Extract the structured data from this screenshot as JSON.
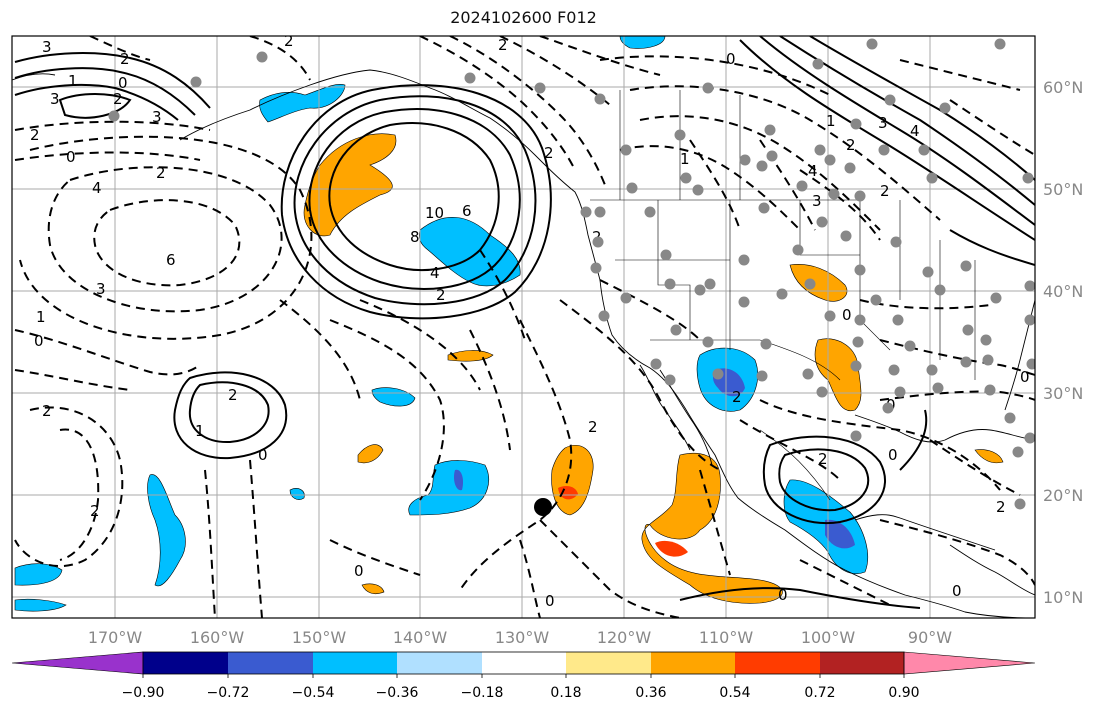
{
  "title": "2024102600 F012",
  "map": {
    "projection": "cylindrical",
    "lon_range": [
      -178,
      -77
    ],
    "lat_range": [
      8,
      65
    ],
    "lon_labels": [
      "170°W",
      "160°W",
      "150°W",
      "140°W",
      "130°W",
      "120°W",
      "110°W",
      "100°W",
      "90°W"
    ],
    "lat_labels": [
      "60°N",
      "50°N",
      "40°N",
      "30°N",
      "20°N",
      "10°N"
    ],
    "marker": {
      "lon": -128,
      "lat": 19,
      "color": "#000000"
    },
    "contour_labels": [
      "3",
      "2",
      "1",
      "0",
      "3",
      "2",
      "3",
      "2",
      "0",
      "4",
      "2",
      "6",
      "3",
      "1",
      "0",
      "2",
      "2",
      "10",
      "8",
      "6",
      "4",
      "2",
      "0",
      "2",
      "1",
      "0",
      "2",
      "0",
      "0",
      "2",
      "0",
      "0",
      "1",
      "2",
      "3",
      "4",
      "2",
      "3",
      "1",
      "2",
      "0",
      "4",
      "2",
      "0",
      "2",
      "2",
      "2",
      "0",
      "2",
      "0"
    ]
  },
  "colorbar": {
    "colors": [
      "#9932cc",
      "#00008b",
      "#3a5bd0",
      "#00bfff",
      "#b0e0ff",
      "#ffffff",
      "#ffe98a",
      "#ffa500",
      "#ff3c00",
      "#b22222",
      "#ff88aa"
    ],
    "tick_labels": [
      "−0.90",
      "−0.72",
      "−0.54",
      "−0.36",
      "−0.18",
      "0.18",
      "0.36",
      "0.54",
      "0.72",
      "0.90"
    ],
    "ticks": [
      -0.9,
      -0.72,
      -0.54,
      -0.36,
      -0.18,
      0.18,
      0.36,
      0.54,
      0.72,
      0.9
    ]
  },
  "colors": {
    "coast": "#000000",
    "grid": "#aaaaaa",
    "stations": "#888888",
    "positive": "#ffa500",
    "negative": "#00bfff"
  },
  "icons": [
    "station-dot",
    "storm-marker"
  ]
}
